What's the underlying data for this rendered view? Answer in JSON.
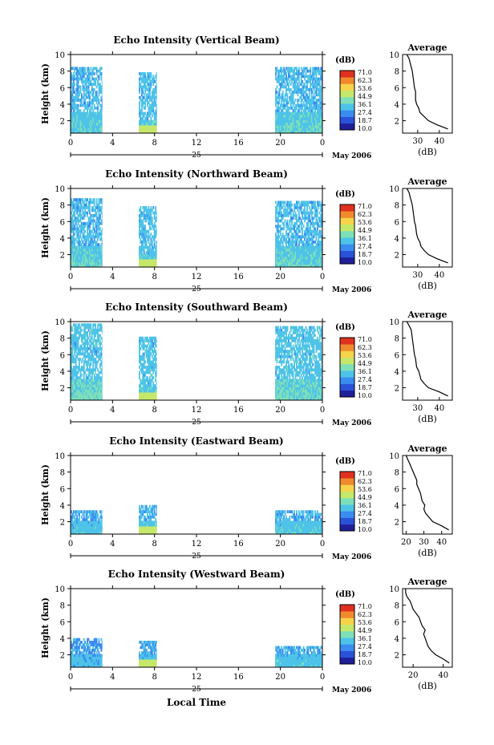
{
  "colorbar": {
    "unit": "(dB)",
    "ticks": [
      "71.0",
      "62.3",
      "53.6",
      "44.9",
      "36.1",
      "27.4",
      "18.7",
      "10.0"
    ],
    "colors": [
      "#1f1f9a",
      "#2a52d8",
      "#3a8cf0",
      "#4ec3e8",
      "#7ee0b8",
      "#c6e86a",
      "#f7d34a",
      "#f08a2c",
      "#e0311f"
    ]
  },
  "x_axis": {
    "ticks": [
      "0",
      "4",
      "8",
      "12",
      "16",
      "20",
      "0"
    ],
    "day_label": "25",
    "date_label": "May 2006",
    "xlabel": "Local Time"
  },
  "avg_axis": {
    "xlabel": "(dB)",
    "title": "Average"
  },
  "chart_data": [
    {
      "type": "heatmap",
      "title": "Echo Intensity (Vertical Beam)",
      "ylabel": "Height (km)",
      "yticks": [
        "2",
        "4",
        "6",
        "8",
        "10"
      ],
      "ylim": [
        0.5,
        10
      ],
      "xlim": [
        0,
        24
      ],
      "segments": [
        {
          "x0": 0.0,
          "x1": 3.0,
          "top": 8.5,
          "low_band_top": 3.0,
          "level": 0.36
        },
        {
          "x0": 6.5,
          "x1": 8.2,
          "top": 7.8,
          "low_band_top": 2.0,
          "level": 0.38
        },
        {
          "x0": 19.5,
          "x1": 24.0,
          "top": 8.2,
          "low_band_top": 3.0,
          "level": 0.37
        }
      ],
      "average": {
        "xticks": [
          "30",
          "40"
        ],
        "xlim": [
          23,
          46
        ],
        "x": [
          44,
          39,
          35,
          33,
          31,
          30.5,
          29.5,
          29,
          29,
          28.5,
          28,
          27.5,
          26.5,
          26,
          25
        ],
        "y": [
          1.0,
          1.5,
          2.0,
          2.5,
          3.0,
          3.5,
          4.0,
          4.5,
          5.5,
          6.0,
          7.0,
          8.0,
          9.0,
          9.5,
          10.0
        ]
      }
    },
    {
      "type": "heatmap",
      "title": "Echo Intensity (Northward Beam)",
      "ylabel": "Height (km)",
      "yticks": [
        "2",
        "4",
        "6",
        "8",
        "10"
      ],
      "ylim": [
        0.5,
        10
      ],
      "xlim": [
        0,
        24
      ],
      "segments": [
        {
          "x0": 0.0,
          "x1": 3.0,
          "top": 8.7,
          "low_band_top": 3.0,
          "level": 0.37
        },
        {
          "x0": 6.5,
          "x1": 8.2,
          "top": 7.8,
          "low_band_top": 2.0,
          "level": 0.38
        },
        {
          "x0": 19.5,
          "x1": 24.0,
          "top": 8.3,
          "low_band_top": 3.0,
          "level": 0.37
        }
      ],
      "average": {
        "xticks": [
          "30",
          "40"
        ],
        "xlim": [
          23,
          46
        ],
        "x": [
          44,
          39,
          35,
          33,
          31.5,
          31,
          30,
          29.5,
          29,
          28.5,
          28,
          27.5,
          26.5,
          26,
          25
        ],
        "y": [
          1.0,
          1.5,
          2.0,
          2.5,
          3.0,
          3.5,
          4.0,
          4.5,
          5.5,
          6.0,
          7.0,
          8.0,
          9.0,
          9.5,
          10.0
        ]
      }
    },
    {
      "type": "heatmap",
      "title": "Echo Intensity (Southward Beam)",
      "ylabel": "Height (km)",
      "yticks": [
        "2",
        "4",
        "6",
        "8",
        "10"
      ],
      "ylim": [
        0.5,
        10
      ],
      "xlim": [
        0,
        24
      ],
      "segments": [
        {
          "x0": 0.0,
          "x1": 3.0,
          "top": 9.5,
          "low_band_top": 3.0,
          "level": 0.39
        },
        {
          "x0": 6.5,
          "x1": 8.2,
          "top": 8.0,
          "low_band_top": 2.0,
          "level": 0.39
        },
        {
          "x0": 19.5,
          "x1": 24.0,
          "top": 9.2,
          "low_band_top": 3.0,
          "level": 0.39
        }
      ],
      "average": {
        "xticks": [
          "30",
          "40"
        ],
        "xlim": [
          23,
          46
        ],
        "x": [
          44,
          40,
          35,
          33,
          31.5,
          31,
          30.5,
          29.5,
          29,
          28.5,
          28,
          27.5,
          27,
          26,
          25
        ],
        "y": [
          1.0,
          1.5,
          2.0,
          2.5,
          3.0,
          3.5,
          4.0,
          4.5,
          5.5,
          6.0,
          7.0,
          8.0,
          9.0,
          9.5,
          10.0
        ]
      }
    },
    {
      "type": "heatmap",
      "title": "Echo Intensity (Eastward Beam)",
      "ylabel": "Height (km)",
      "yticks": [
        "2",
        "4",
        "6",
        "8",
        "10"
      ],
      "ylim": [
        0.5,
        10
      ],
      "xlim": [
        0,
        24
      ],
      "segments": [
        {
          "x0": 0.0,
          "x1": 3.0,
          "top": 3.2,
          "low_band_top": 2.0,
          "level": 0.34
        },
        {
          "x0": 6.5,
          "x1": 8.2,
          "top": 4.0,
          "low_band_top": 2.0,
          "level": 0.36
        },
        {
          "x0": 19.5,
          "x1": 24.0,
          "top": 3.2,
          "low_band_top": 2.0,
          "level": 0.35
        }
      ],
      "average": {
        "xticks": [
          "20",
          "30",
          "40"
        ],
        "xlim": [
          18,
          46
        ],
        "x": [
          44,
          40,
          35,
          33,
          31,
          30,
          30.5,
          29,
          28.5,
          28,
          27,
          26,
          26,
          25,
          24,
          23,
          22,
          21,
          20
        ],
        "y": [
          1.0,
          1.5,
          2.0,
          2.5,
          3.0,
          3.5,
          4.0,
          4.5,
          5.0,
          5.5,
          6.0,
          6.5,
          7.0,
          7.5,
          8.0,
          8.5,
          9.0,
          9.5,
          10.0
        ]
      }
    },
    {
      "type": "heatmap",
      "title": "Echo Intensity (Westward Beam)",
      "ylabel": "Height (km)",
      "yticks": [
        "2",
        "4",
        "6",
        "8",
        "10"
      ],
      "ylim": [
        0.5,
        10
      ],
      "xlim": [
        0,
        24
      ],
      "segments": [
        {
          "x0": 0.0,
          "x1": 3.0,
          "top": 4.0,
          "low_band_top": 2.0,
          "level": 0.32
        },
        {
          "x0": 6.5,
          "x1": 8.2,
          "top": 3.5,
          "low_band_top": 2.0,
          "level": 0.34
        },
        {
          "x0": 19.5,
          "x1": 24.0,
          "top": 3.0,
          "low_band_top": 2.0,
          "level": 0.34
        }
      ],
      "average": {
        "xticks": [
          "20",
          "40"
        ],
        "xlim": [
          13,
          46
        ],
        "x": [
          44,
          40,
          35,
          32,
          30,
          29,
          28,
          27,
          28,
          26,
          25,
          24,
          22,
          20,
          19,
          18,
          16,
          15,
          15
        ],
        "y": [
          1.0,
          1.5,
          2.0,
          2.5,
          3.0,
          3.5,
          4.0,
          4.5,
          5.0,
          5.5,
          6.0,
          6.5,
          7.0,
          7.5,
          8.0,
          8.5,
          9.0,
          9.5,
          10.0
        ]
      }
    }
  ]
}
